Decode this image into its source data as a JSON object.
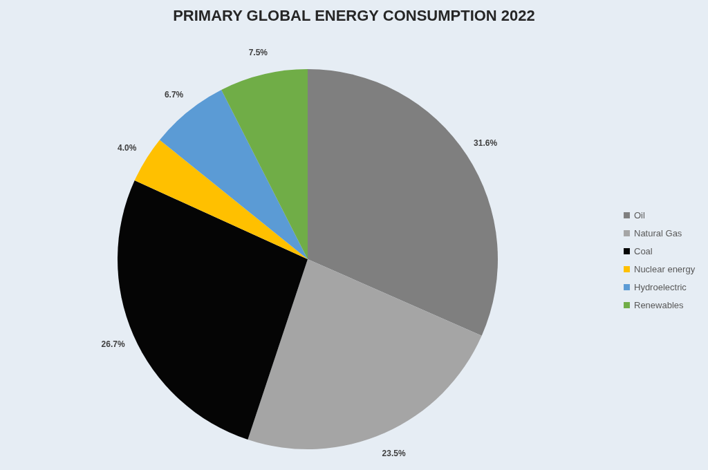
{
  "chart_data": {
    "type": "pie",
    "title": "PRIMARY GLOBAL ENERGY CONSUMPTION 2022",
    "categories": [
      "Oil",
      "Natural Gas",
      "Coal",
      "Nuclear energy",
      "Hydroelectric",
      "Renewables"
    ],
    "values": [
      31.6,
      23.5,
      26.7,
      4.0,
      6.7,
      7.5
    ],
    "colors": [
      "#7f7f7f",
      "#a5a5a5",
      "#050505",
      "#ffc000",
      "#5b9bd5",
      "#70ad47"
    ],
    "value_labels": [
      "31.6%",
      "23.5%",
      "26.7%",
      "4.0%",
      "6.7%",
      "7.5%"
    ],
    "legend": "right"
  }
}
